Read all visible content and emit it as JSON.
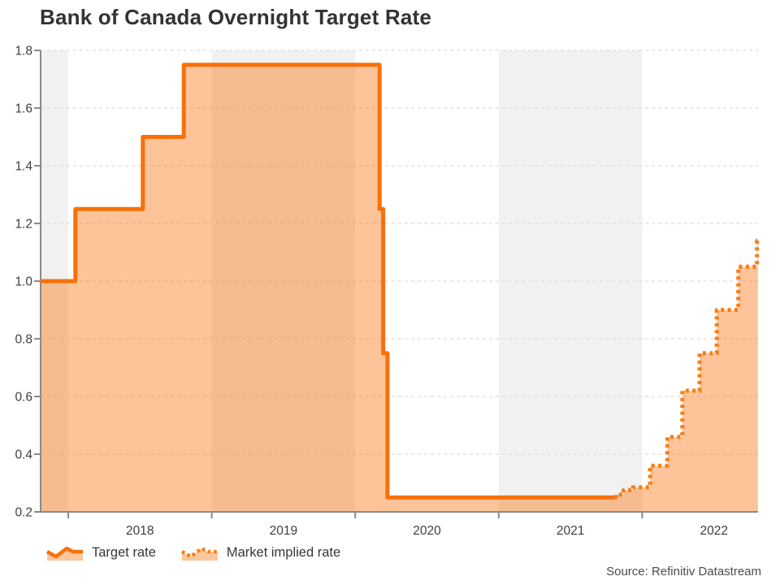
{
  "chart_data": {
    "type": "area",
    "title": "Bank of Canada Overnight Target Rate",
    "source": "Source: Refinitiv Datastream",
    "ylabel": "",
    "xlabel": "",
    "legend_position": "bottom-left",
    "grid": "dashed-horizontal",
    "x_axis": {
      "tick_years": [
        2018,
        2019,
        2020,
        2021,
        2022
      ],
      "tick_labels": [
        "2018",
        "2019",
        "2020",
        "2021",
        "2022"
      ],
      "range": [
        2017.807,
        2022.807
      ]
    },
    "y_axis": {
      "tick_values": [
        0.2,
        0.4,
        0.6,
        0.8,
        1.0,
        1.2,
        1.4,
        1.6,
        1.8
      ],
      "tick_labels": [
        "0.2",
        "0.4",
        "0.6",
        "0.8",
        "1.0",
        "1.2",
        "1.4",
        "1.6",
        "1.8"
      ],
      "range": [
        0.2,
        1.8
      ]
    },
    "shaded_year_bands": [
      [
        2017.807,
        2018
      ],
      [
        2019,
        2020
      ],
      [
        2021,
        2022
      ]
    ],
    "series": [
      {
        "name": "Target rate",
        "line_style": "solid",
        "step_points": [
          [
            2017.807,
            1.0
          ],
          [
            2018.05,
            1.25
          ],
          [
            2018.52,
            1.5
          ],
          [
            2018.805,
            1.75
          ],
          [
            2020.17,
            1.25
          ],
          [
            2020.195,
            0.75
          ],
          [
            2020.225,
            0.25
          ],
          [
            2021.81,
            0.25
          ]
        ]
      },
      {
        "name": "Market implied rate",
        "line_style": "dotted",
        "step_points": [
          [
            2021.81,
            0.25
          ],
          [
            2021.815,
            0.26
          ],
          [
            2021.87,
            0.275
          ],
          [
            2021.935,
            0.285
          ],
          [
            2022.055,
            0.36
          ],
          [
            2022.175,
            0.46
          ],
          [
            2022.28,
            0.62
          ],
          [
            2022.4,
            0.75
          ],
          [
            2022.52,
            0.9
          ],
          [
            2022.67,
            1.05
          ],
          [
            2022.8,
            1.14
          ],
          [
            2022.807,
            1.14
          ]
        ]
      }
    ],
    "colors": {
      "solid_line": "#f8700a",
      "dotted_line": "#f87d15",
      "area_fill": "rgba(248,114,10,0.42)",
      "band": "#f1f1f1",
      "grid": "#dcdcdc",
      "axis": "#8a8a8a",
      "tick_text": "#3e3e3e",
      "title_text": "#333333",
      "source_text": "#4c4c4c"
    }
  }
}
